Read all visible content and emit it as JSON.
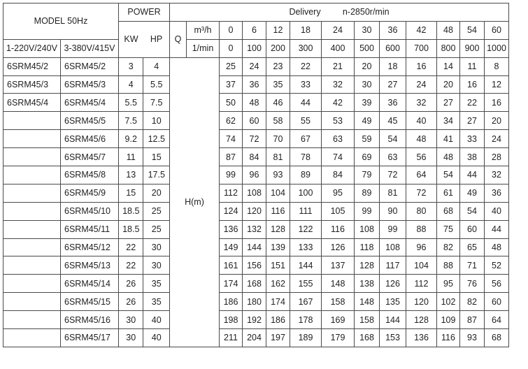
{
  "header": {
    "model": "MODEL 50Hz",
    "power": "POWER",
    "delivery": "Delivery",
    "speed": "n-2850r/min",
    "voltage_1ph": "1-220V/240V",
    "voltage_3ph": "3-380V/415V",
    "kw": "KW",
    "hp": "HP",
    "q": "Q",
    "unit_m3h": "m³/h",
    "unit_lmin": "1/min",
    "head_label": "H(m)"
  },
  "flow_m3h": [
    "0",
    "6",
    "12",
    "18",
    "24",
    "30",
    "36",
    "42",
    "48",
    "54",
    "60"
  ],
  "flow_lmin": [
    "0",
    "100",
    "200",
    "300",
    "400",
    "500",
    "600",
    "700",
    "800",
    "900",
    "1000"
  ],
  "rows": [
    {
      "m1": "6SRM45/2",
      "m3": "6SRM45/2",
      "kw": "3",
      "hp": "4",
      "h": [
        "25",
        "24",
        "23",
        "22",
        "21",
        "20",
        "18",
        "16",
        "14",
        "11",
        "8"
      ]
    },
    {
      "m1": "6SRM45/3",
      "m3": "6SRM45/3",
      "kw": "4",
      "hp": "5.5",
      "h": [
        "37",
        "36",
        "35",
        "33",
        "32",
        "30",
        "27",
        "24",
        "20",
        "16",
        "12"
      ]
    },
    {
      "m1": "6SRM45/4",
      "m3": "6SRM45/4",
      "kw": "5.5",
      "hp": "7.5",
      "h": [
        "50",
        "48",
        "46",
        "44",
        "42",
        "39",
        "36",
        "32",
        "27",
        "22",
        "16"
      ]
    },
    {
      "m1": "",
      "m3": "6SRM45/5",
      "kw": "7.5",
      "hp": "10",
      "h": [
        "62",
        "60",
        "58",
        "55",
        "53",
        "49",
        "45",
        "40",
        "34",
        "27",
        "20"
      ]
    },
    {
      "m1": "",
      "m3": "6SRM45/6",
      "kw": "9.2",
      "hp": "12.5",
      "h": [
        "74",
        "72",
        "70",
        "67",
        "63",
        "59",
        "54",
        "48",
        "41",
        "33",
        "24"
      ]
    },
    {
      "m1": "",
      "m3": "6SRM45/7",
      "kw": "11",
      "hp": "15",
      "h": [
        "87",
        "84",
        "81",
        "78",
        "74",
        "69",
        "63",
        "56",
        "48",
        "38",
        "28"
      ]
    },
    {
      "m1": "",
      "m3": "6SRM45/8",
      "kw": "13",
      "hp": "17.5",
      "h": [
        "99",
        "96",
        "93",
        "89",
        "84",
        "79",
        "72",
        "64",
        "54",
        "44",
        "32"
      ]
    },
    {
      "m1": "",
      "m3": "6SRM45/9",
      "kw": "15",
      "hp": "20",
      "h": [
        "112",
        "108",
        "104",
        "100",
        "95",
        "89",
        "81",
        "72",
        "61",
        "49",
        "36"
      ]
    },
    {
      "m1": "",
      "m3": "6SRM45/10",
      "kw": "18.5",
      "hp": "25",
      "h": [
        "124",
        "120",
        "116",
        "111",
        "105",
        "99",
        "90",
        "80",
        "68",
        "54",
        "40"
      ]
    },
    {
      "m1": "",
      "m3": "6SRM45/11",
      "kw": "18.5",
      "hp": "25",
      "h": [
        "136",
        "132",
        "128",
        "122",
        "116",
        "108",
        "99",
        "88",
        "75",
        "60",
        "44"
      ]
    },
    {
      "m1": "",
      "m3": "6SRM45/12",
      "kw": "22",
      "hp": "30",
      "h": [
        "149",
        "144",
        "139",
        "133",
        "126",
        "118",
        "108",
        "96",
        "82",
        "65",
        "48"
      ]
    },
    {
      "m1": "",
      "m3": "6SRM45/13",
      "kw": "22",
      "hp": "30",
      "h": [
        "161",
        "156",
        "151",
        "144",
        "137",
        "128",
        "117",
        "104",
        "88",
        "71",
        "52"
      ]
    },
    {
      "m1": "",
      "m3": "6SRM45/14",
      "kw": "26",
      "hp": "35",
      "h": [
        "174",
        "168",
        "162",
        "155",
        "148",
        "138",
        "126",
        "112",
        "95",
        "76",
        "56"
      ]
    },
    {
      "m1": "",
      "m3": "6SRM45/15",
      "kw": "26",
      "hp": "35",
      "h": [
        "186",
        "180",
        "174",
        "167",
        "158",
        "148",
        "135",
        "120",
        "102",
        "82",
        "60"
      ]
    },
    {
      "m1": "",
      "m3": "6SRM45/16",
      "kw": "30",
      "hp": "40",
      "h": [
        "198",
        "192",
        "186",
        "178",
        "169",
        "158",
        "144",
        "128",
        "109",
        "87",
        "64"
      ]
    },
    {
      "m1": "",
      "m3": "6SRM45/17",
      "kw": "30",
      "hp": "40",
      "h": [
        "211",
        "204",
        "197",
        "189",
        "179",
        "168",
        "153",
        "136",
        "116",
        "93",
        "68"
      ]
    }
  ]
}
